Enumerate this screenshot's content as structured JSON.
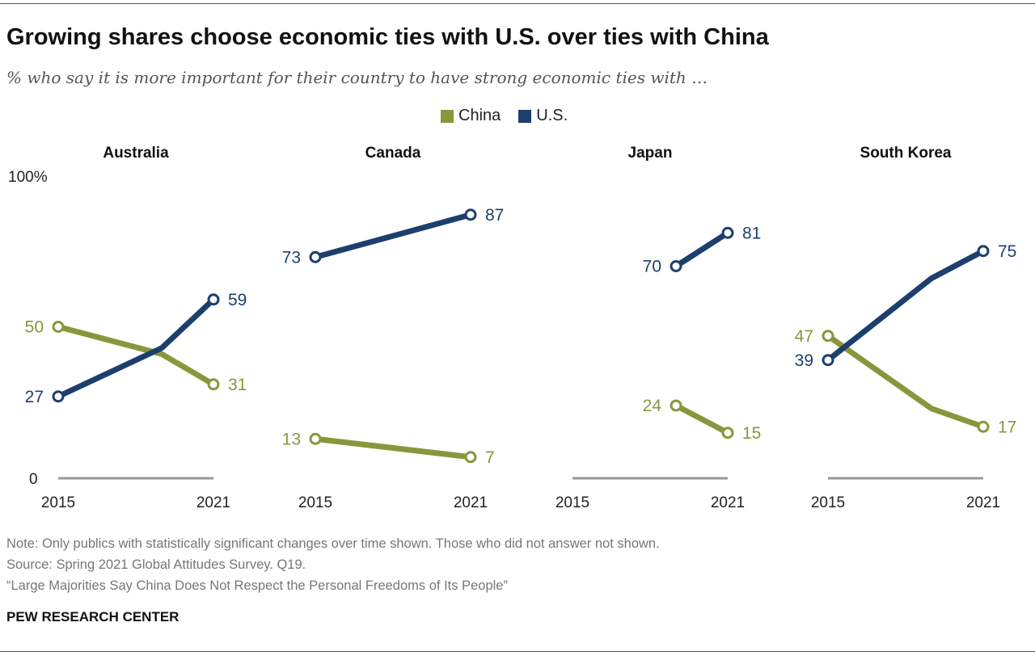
{
  "title": "Growing shares choose economic ties with U.S. over ties with China",
  "subtitle": "% who say it is more important for their country to have strong economic ties with …",
  "notes": [
    "Note: Only publics with statistically significant changes over time shown. Those who did not answer not shown.",
    "Source: Spring 2021 Global Attitudes Survey. Q19.",
    "“Large Majorities Say China Does Not Respect the Personal Freedoms of Its People”"
  ],
  "brand": "PEW RESEARCH CENTER",
  "chart_data": {
    "type": "line",
    "legend": [
      {
        "name": "China",
        "color": "#8a963c"
      },
      {
        "name": "U.S.",
        "color": "#1d3f6e"
      }
    ],
    "legend_position": "top-center",
    "ylim": [
      0,
      100
    ],
    "y_ticks": [
      "100%",
      "0"
    ],
    "x_ticks": [
      "2015",
      "2021"
    ],
    "panels": [
      {
        "name": "Australia",
        "baseline": true,
        "series": [
          {
            "name": "China",
            "x": [
              2015,
              2019,
              2021
            ],
            "y": [
              50,
              41,
              31
            ],
            "labels": [
              "50",
              "31"
            ]
          },
          {
            "name": "U.S.",
            "x": [
              2015,
              2019,
              2021
            ],
            "y": [
              27,
              43,
              59
            ],
            "labels": [
              "27",
              "59"
            ]
          }
        ]
      },
      {
        "name": "Canada",
        "baseline": false,
        "series": [
          {
            "name": "China",
            "x": [
              2015,
              2021
            ],
            "y": [
              13,
              7
            ],
            "labels": [
              "13",
              "7"
            ]
          },
          {
            "name": "U.S.",
            "x": [
              2015,
              2021
            ],
            "y": [
              73,
              87
            ],
            "labels": [
              "73",
              "87"
            ]
          }
        ]
      },
      {
        "name": "Japan",
        "baseline": true,
        "series": [
          {
            "name": "China",
            "x": [
              2019,
              2021
            ],
            "y": [
              24,
              15
            ],
            "labels": [
              "24",
              "15"
            ]
          },
          {
            "name": "U.S.",
            "x": [
              2019,
              2021
            ],
            "y": [
              70,
              81
            ],
            "labels": [
              "70",
              "81"
            ]
          }
        ]
      },
      {
        "name": "South Korea",
        "baseline": true,
        "series": [
          {
            "name": "China",
            "x": [
              2015,
              2019,
              2021
            ],
            "y": [
              47,
              23,
              17
            ],
            "labels": [
              "47",
              "17"
            ]
          },
          {
            "name": "U.S.",
            "x": [
              2015,
              2019,
              2021
            ],
            "y": [
              39,
              66,
              75
            ],
            "labels": [
              "39",
              "75"
            ]
          }
        ]
      }
    ]
  }
}
